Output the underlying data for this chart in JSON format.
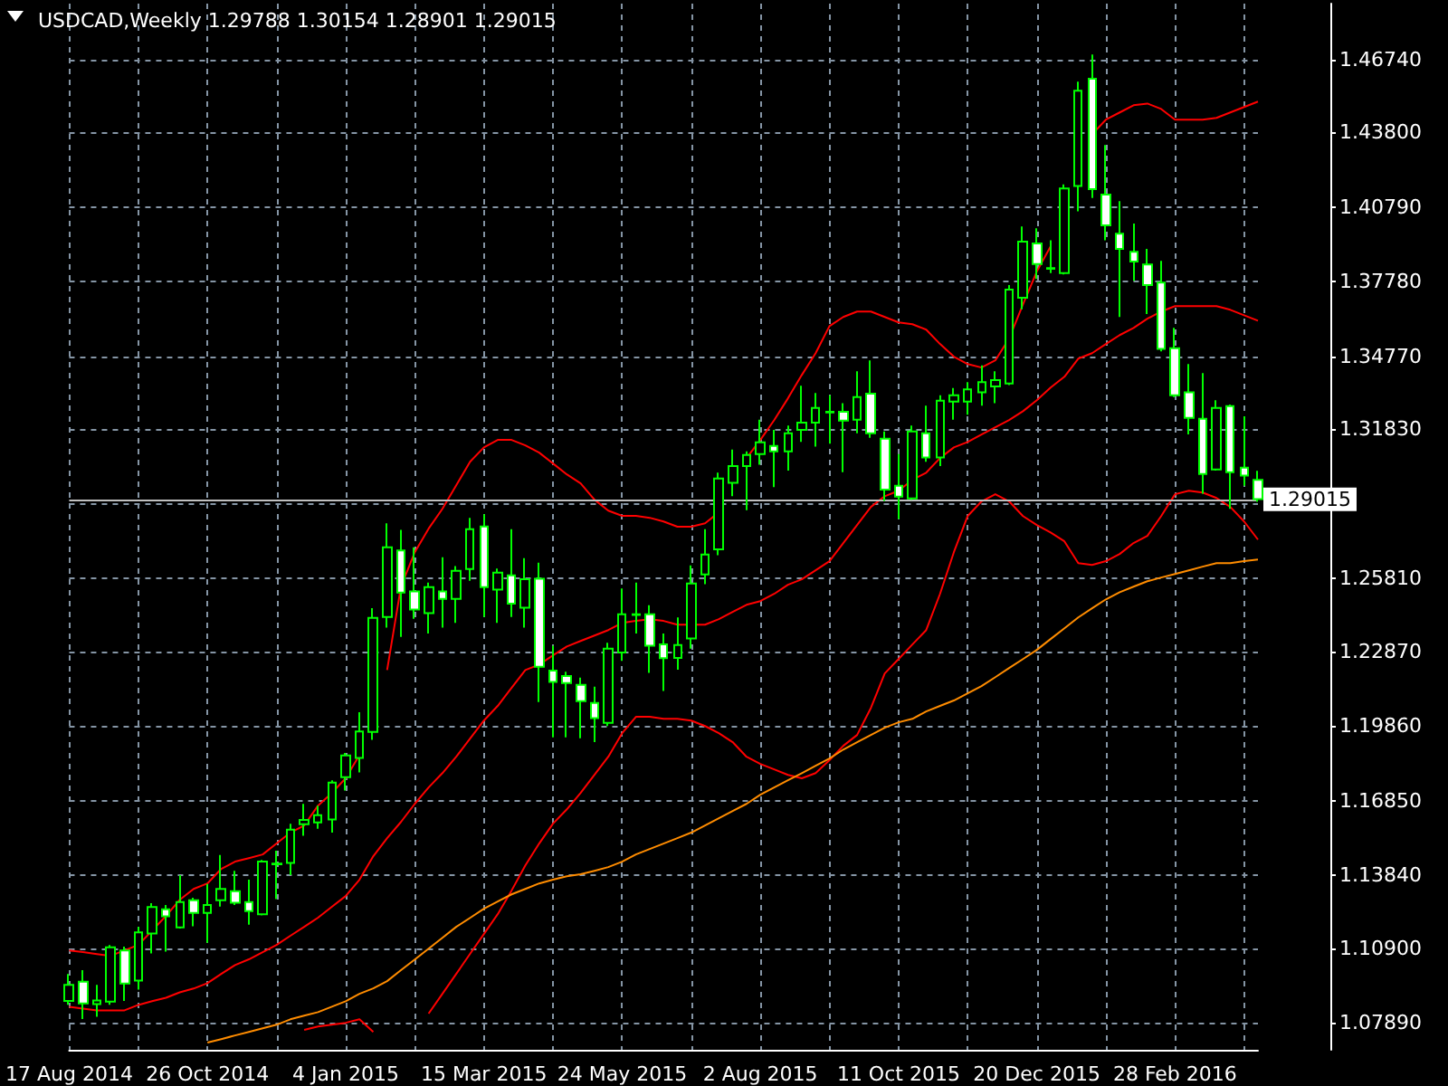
{
  "chart_data": {
    "type": "candlestick",
    "title": "USDCAD,Weekly 1.29788 1.30154 1.28901 1.29015",
    "categories": [
      "17 Aug 2014",
      null,
      null,
      null,
      null,
      null,
      null,
      null,
      null,
      null,
      "26 Oct 2014",
      null,
      null,
      null,
      null,
      null,
      null,
      null,
      null,
      null,
      "4 Jan 2015",
      null,
      null,
      null,
      null,
      null,
      null,
      null,
      null,
      null,
      "15 Mar 2015",
      null,
      null,
      null,
      null,
      null,
      null,
      null,
      null,
      null,
      "24 May 2015",
      null,
      null,
      null,
      null,
      null,
      null,
      null,
      null,
      null,
      "2 Aug 2015",
      null,
      null,
      null,
      null,
      null,
      null,
      null,
      null,
      null,
      "11 Oct 2015",
      null,
      null,
      null,
      null,
      null,
      null,
      null,
      null,
      null,
      "20 Dec 2015",
      null,
      null,
      null,
      null,
      null,
      null,
      null,
      null,
      null,
      "28 Feb 2016",
      null,
      null,
      null,
      null,
      null,
      null
    ],
    "ylim": [
      1.068,
      1.49
    ],
    "yticks": [
      {
        "value": 1.0789,
        "label": "1.07890"
      },
      {
        "value": 1.109,
        "label": "1.10900"
      },
      {
        "value": 1.1384,
        "label": "1.13840"
      },
      {
        "value": 1.1685,
        "label": "1.16850"
      },
      {
        "value": 1.1986,
        "label": "1.19860"
      },
      {
        "value": 1.2287,
        "label": "1.22870"
      },
      {
        "value": 1.2581,
        "label": "1.25810"
      },
      {
        "value": 1.2882,
        "label": null
      },
      {
        "value": 1.3183,
        "label": "1.31830"
      },
      {
        "value": 1.3477,
        "label": "1.34770"
      },
      {
        "value": 1.3778,
        "label": "1.37780"
      },
      {
        "value": 1.4079,
        "label": "1.40790"
      },
      {
        "value": 1.438,
        "label": "1.43800"
      },
      {
        "value": 1.4674,
        "label": "1.46740"
      }
    ],
    "grid": true,
    "marker": "none",
    "line_style": "solid",
    "ref_lines": [
      {
        "axis": "y",
        "value": 1.29015,
        "label": "1.29015",
        "color": "#c0c0c0"
      }
    ],
    "series": [
      {
        "type": "line",
        "color": "#ff0000",
        "values": [
          1.1081,
          1.1074,
          1.1066,
          1.1059,
          1.1081,
          1.1103,
          1.1161,
          1.122,
          1.1285,
          1.1329,
          1.1351,
          1.141,
          1.1439,
          1.1453,
          1.1468,
          1.1512,
          1.1556,
          1.1585,
          1.1665,
          1.1716,
          1.1775,
          1.1869,
          null,
          1.2212,
          1.2548,
          1.2687,
          1.2782,
          1.2862,
          1.2957,
          1.3052,
          1.311,
          1.314,
          1.314,
          1.3118,
          1.3089,
          1.3045,
          1.3001,
          1.2965,
          1.2899,
          1.2855,
          1.2834,
          1.2834,
          1.2826,
          1.2811,
          1.279,
          1.279,
          1.2804,
          1.2848,
          null,
          1.3067,
          1.314,
          1.322,
          1.3308,
          1.3402,
          1.349,
          1.3599,
          1.3636,
          1.3658,
          1.3658,
          1.3636,
          1.3614,
          1.3607,
          1.3585,
          1.3527,
          1.3476,
          1.3446,
          1.3432,
          1.3461,
          1.3549,
          1.3687,
          1.3819,
          1.3921,
          null,
          null,
          1.4373,
          1.4432,
          1.4461,
          1.449,
          1.4497,
          1.4475,
          1.4432,
          1.4432,
          1.4432,
          1.4439,
          1.4461,
          1.4483,
          1.4505
        ]
      },
      {
        "type": "line",
        "color": "#ff0000",
        "values": [
          1.0853,
          1.0846,
          1.0839,
          1.0839,
          1.0839,
          1.0861,
          1.0876,
          1.089,
          1.0912,
          1.0927,
          1.0949,
          1.0986,
          1.1022,
          1.1045,
          1.1074,
          1.1103,
          1.114,
          1.1176,
          1.1213,
          1.1257,
          1.13,
          1.1366,
          1.1461,
          1.1534,
          1.1599,
          1.1672,
          1.1738,
          1.1796,
          1.1862,
          1.1935,
          1.2008,
          1.2067,
          1.214,
          1.2212,
          1.2234,
          1.2271,
          1.2307,
          1.2329,
          1.2351,
          1.2373,
          1.2402,
          1.241,
          1.2417,
          1.241,
          1.2395,
          1.2395,
          1.2395,
          1.2417,
          1.2446,
          1.2475,
          1.249,
          1.2519,
          1.2556,
          1.2578,
          1.2614,
          1.2651,
          1.2724,
          1.2797,
          1.287,
          1.2913,
          1.2935,
          1.2979,
          1.3008,
          1.3067,
          1.311,
          1.3132,
          1.3162,
          1.3191,
          1.322,
          1.3256,
          1.33,
          1.3351,
          1.3395,
          1.3468,
          1.349,
          1.3527,
          1.3563,
          1.3592,
          1.3629,
          1.3658,
          1.368,
          1.368,
          1.368,
          1.368,
          1.3665,
          1.3643,
          1.3621
        ]
      },
      {
        "type": "line",
        "color": "#ff0000",
        "values": [
          null,
          null,
          null,
          null,
          null,
          null,
          null,
          null,
          null,
          null,
          null,
          null,
          null,
          null,
          null,
          null,
          null,
          1.076,
          1.0774,
          1.0781,
          1.0789,
          1.0803,
          1.0752,
          null,
          null,
          null,
          1.0826,
          1.0906,
          1.0986,
          1.1067,
          1.1147,
          1.1227,
          1.1322,
          1.1424,
          1.1512,
          1.1592,
          1.165,
          1.1716,
          1.1789,
          1.1862,
          1.1957,
          1.2023,
          1.2023,
          1.2015,
          1.2015,
          1.2008,
          1.1986,
          1.1957,
          1.1921,
          1.1862,
          1.1833,
          1.1811,
          1.1789,
          1.1775,
          1.1796,
          1.1848,
          1.1906,
          1.195,
          1.2059,
          1.2198,
          1.2256,
          1.2315,
          1.2373,
          1.2519,
          1.2687,
          1.2833,
          1.2892,
          1.2921,
          1.2892,
          1.2833,
          1.2797,
          1.2767,
          1.2731,
          1.2643,
          1.2636,
          1.2651,
          1.268,
          1.2724,
          1.2753,
          1.2833,
          1.2921,
          1.2935,
          1.2928,
          1.2906,
          1.287,
          1.2811,
          1.2738
        ]
      },
      {
        "type": "line",
        "color": "#ff8c00",
        "values": [
          null,
          null,
          null,
          null,
          null,
          null,
          null,
          null,
          null,
          null,
          1.0709,
          1.0723,
          1.0738,
          1.0752,
          1.0767,
          1.0781,
          1.0803,
          1.0818,
          1.0832,
          1.0854,
          1.0876,
          1.0906,
          1.0928,
          1.0957,
          1.1001,
          1.1044,
          1.1088,
          1.1132,
          1.1176,
          1.1212,
          1.1249,
          1.1278,
          1.1307,
          1.1329,
          1.1351,
          1.1366,
          1.138,
          1.1388,
          1.1402,
          1.1417,
          1.1439,
          1.1468,
          1.149,
          1.1512,
          1.1534,
          1.1556,
          1.1585,
          1.1614,
          1.1643,
          1.1672,
          1.1709,
          1.1738,
          1.1767,
          1.1796,
          1.1826,
          1.1855,
          1.1891,
          1.1921,
          1.195,
          1.1979,
          1.2001,
          1.2015,
          1.2045,
          1.2067,
          1.2089,
          1.2118,
          1.2147,
          1.2183,
          1.222,
          1.2256,
          1.2293,
          1.2337,
          1.238,
          1.2424,
          1.2461,
          1.2497,
          1.2526,
          1.2548,
          1.257,
          1.2585,
          1.2599,
          1.2614,
          1.2629,
          1.2643,
          1.2643,
          1.2651,
          1.2658
        ]
      },
      {
        "color": "#00ff00",
        "ohlc": [
          [
            1.0877,
            1.0986,
            1.0862,
            1.0942
          ],
          [
            1.0955,
            1.1001,
            1.0804,
            1.0867
          ],
          [
            1.0864,
            1.0942,
            1.0813,
            1.0879
          ],
          [
            1.0874,
            1.1103,
            1.0862,
            1.1093
          ],
          [
            1.1081,
            1.1096,
            1.0877,
            1.0947
          ],
          [
            1.0959,
            1.1176,
            1.0923,
            1.1154
          ],
          [
            1.1149,
            1.1271,
            1.1069,
            1.1256
          ],
          [
            1.1247,
            1.1264,
            1.1076,
            1.1218
          ],
          [
            1.1174,
            1.1385,
            1.1169,
            1.1276
          ],
          [
            1.1283,
            1.1293,
            1.1178,
            1.1232
          ],
          [
            1.1232,
            1.1349,
            1.1112,
            1.1264
          ],
          [
            1.1283,
            1.1466,
            1.1258,
            1.1329
          ],
          [
            1.132,
            1.1402,
            1.1264,
            1.1273
          ],
          [
            1.1276,
            1.1366,
            1.1185,
            1.1239
          ],
          [
            1.1227,
            1.1446,
            1.1222,
            1.1439
          ],
          [
            1.1428,
            1.1483,
            1.1288,
            1.1431
          ],
          [
            1.1434,
            1.1592,
            1.1385,
            1.1568
          ],
          [
            1.159,
            1.1672,
            1.1543,
            1.1607
          ],
          [
            1.1597,
            1.1665,
            1.1572,
            1.1626
          ],
          [
            1.1609,
            1.1767,
            1.1556,
            1.1758
          ],
          [
            1.178,
            1.1877,
            1.1726,
            1.1867
          ],
          [
            1.1857,
            1.2042,
            1.1799,
            1.1964
          ],
          [
            1.1962,
            1.2461,
            1.193,
            1.2422
          ],
          [
            1.2426,
            1.2804,
            1.2383,
            1.2707
          ],
          [
            1.2694,
            1.2777,
            1.2346,
            1.2524
          ],
          [
            1.2529,
            1.2707,
            1.2419,
            1.2456
          ],
          [
            1.2441,
            1.2565,
            1.2359,
            1.2546
          ],
          [
            1.2529,
            1.2667,
            1.2383,
            1.2499
          ],
          [
            1.2499,
            1.2631,
            1.2402,
            1.2612
          ],
          [
            1.2619,
            1.2826,
            1.2572,
            1.278
          ],
          [
            1.2791,
            1.284,
            1.2426,
            1.2546
          ],
          [
            1.2536,
            1.2621,
            1.2402,
            1.2605
          ],
          [
            1.2594,
            1.278,
            1.2426,
            1.248
          ],
          [
            1.2463,
            1.2663,
            1.2383,
            1.2578
          ],
          [
            1.258,
            1.2645,
            1.2083,
            1.2225
          ],
          [
            1.221,
            1.231,
            1.194,
            1.2164
          ],
          [
            1.2188,
            1.2205,
            1.194,
            1.2159
          ],
          [
            1.2152,
            1.2181,
            1.1937,
            1.2086
          ],
          [
            1.2079,
            1.2145,
            1.1921,
            1.2018
          ],
          [
            1.1999,
            1.2322,
            1.1986,
            1.2298
          ],
          [
            1.2283,
            1.2541,
            1.2249,
            1.2437
          ],
          [
            1.2437,
            1.2565,
            1.2359,
            1.2434
          ],
          [
            1.2437,
            1.2473,
            1.22,
            1.231
          ],
          [
            1.2315,
            1.2359,
            1.2127,
            1.226
          ],
          [
            1.2261,
            1.2424,
            1.2213,
            1.2313
          ],
          [
            1.2339,
            1.2634,
            1.2298,
            1.2561
          ],
          [
            1.2597,
            1.278,
            1.2558,
            1.2678
          ],
          [
            1.2699,
            1.3008,
            1.2675,
            1.2984
          ],
          [
            1.2967,
            1.3101,
            1.2913,
            1.3035
          ],
          [
            1.3035,
            1.3094,
            1.2857,
            1.3079
          ],
          [
            1.3083,
            1.3222,
            1.304,
            1.313
          ],
          [
            1.3116,
            1.3181,
            1.295,
            1.3094
          ],
          [
            1.3094,
            1.3198,
            1.3016,
            1.3167
          ],
          [
            1.3181,
            1.3359,
            1.3132,
            1.321
          ],
          [
            1.321,
            1.3329,
            1.3113,
            1.3269
          ],
          [
            1.3251,
            1.332,
            1.3125,
            1.3254
          ],
          [
            1.3254,
            1.3288,
            1.301,
            1.3218
          ],
          [
            1.3222,
            1.3417,
            1.3167,
            1.3313
          ],
          [
            1.3327,
            1.3461,
            1.3149,
            1.3167
          ],
          [
            1.3145,
            1.3174,
            1.2894,
            1.294
          ],
          [
            1.2955,
            1.3083,
            1.2821,
            1.2911
          ],
          [
            1.2904,
            1.3198,
            1.2899,
            1.3174
          ],
          [
            1.3167,
            1.3278,
            1.3052,
            1.3069
          ],
          [
            1.3069,
            1.332,
            1.3035,
            1.3298
          ],
          [
            1.3295,
            1.3349,
            1.3222,
            1.332
          ],
          [
            1.3295,
            1.3373,
            1.3242,
            1.3344
          ],
          [
            1.3332,
            1.3441,
            1.3278,
            1.3373
          ],
          [
            1.3356,
            1.3417,
            1.3288,
            1.3381
          ],
          [
            1.3368,
            1.3765,
            1.3361,
            1.3746
          ],
          [
            1.3714,
            1.4001,
            1.3667,
            1.394
          ],
          [
            1.3933,
            1.3994,
            1.3789,
            1.385
          ],
          [
            1.3833,
            1.3945,
            1.3813,
            1.383
          ],
          [
            1.3813,
            1.4171,
            1.3808,
            1.4154
          ],
          [
            1.4164,
            1.4585,
            1.4062,
            1.4549
          ],
          [
            1.4597,
            1.4695,
            1.4116,
            1.4152
          ],
          [
            1.413,
            1.433,
            1.3945,
            1.4006
          ],
          [
            1.3972,
            1.4103,
            1.3636,
            1.3911
          ],
          [
            1.3899,
            1.4013,
            1.3782,
            1.386
          ],
          [
            1.3848,
            1.3911,
            1.3648,
            1.3765
          ],
          [
            1.3775,
            1.3862,
            1.3497,
            1.3507
          ],
          [
            1.351,
            1.3592,
            1.3313,
            1.332
          ],
          [
            1.3332,
            1.3446,
            1.3162,
            1.3229
          ],
          [
            1.3225,
            1.341,
            1.2923,
            1.3003
          ],
          [
            1.3021,
            1.33,
            1.3016,
            1.3269
          ],
          [
            1.3276,
            1.3283,
            1.2862,
            1.301
          ],
          [
            1.3028,
            1.3235,
            1.2955,
            1.2996
          ],
          [
            1.29788,
            1.30154,
            1.28901,
            1.29015
          ]
        ]
      }
    ]
  }
}
